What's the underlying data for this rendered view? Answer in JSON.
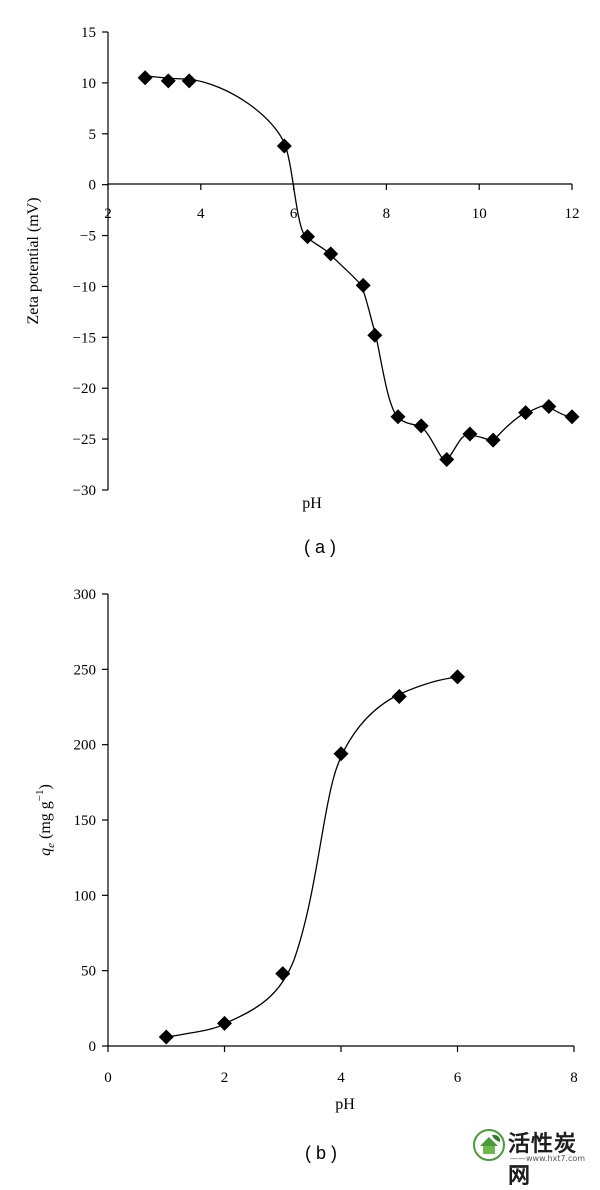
{
  "chart_data": [
    {
      "type": "line",
      "panel_label": "( a )",
      "xlabel": "pH",
      "ylabel": "Zeta potential (mV)",
      "xlim": [
        2,
        12
      ],
      "ylim": [
        -30,
        15
      ],
      "xticks": [
        "2",
        "4",
        "6",
        "8",
        "10",
        "12"
      ],
      "yticks": [
        "15",
        "10",
        "5",
        "0",
        "−5",
        "−10",
        "−15",
        "−20",
        "−25",
        "−30"
      ],
      "grid": false,
      "marker": "diamond",
      "series": [
        {
          "x": [
            2.8,
            3.3,
            3.75,
            5.8,
            6.3,
            6.8,
            7.5,
            7.75,
            8.25,
            8.75,
            9.3,
            9.8,
            10.3,
            11.0,
            11.5,
            12.0
          ],
          "y": [
            10.5,
            10.2,
            10.2,
            3.8,
            -5.1,
            -6.8,
            -9.9,
            -14.8,
            -22.8,
            -23.7,
            -27.0,
            -24.5,
            -25.1,
            -22.4,
            -21.8,
            -22.8
          ]
        }
      ]
    },
    {
      "type": "line",
      "panel_label": "( b )",
      "xlabel": "pH",
      "ylabel_italic": "q",
      "ylabel_sub": "e",
      "ylabel_rest": " (mg g",
      "ylabel_sup": "−1",
      "ylabel_close": ")",
      "xlim": [
        0,
        8
      ],
      "ylim": [
        0,
        300
      ],
      "xticks": [
        "0",
        "2",
        "4",
        "6",
        "8"
      ],
      "yticks": [
        "300",
        "250",
        "200",
        "150",
        "100",
        "50",
        "0"
      ],
      "grid": false,
      "marker": "diamond",
      "series": [
        {
          "x": [
            1,
            2,
            3,
            4,
            5,
            6
          ],
          "y": [
            6,
            15,
            48,
            194,
            232,
            245
          ]
        }
      ]
    }
  ],
  "watermark": {
    "title": "活性炭网",
    "url": "——www.hxt7.com——",
    "logo_icon": "leaf-house-logo-icon"
  }
}
